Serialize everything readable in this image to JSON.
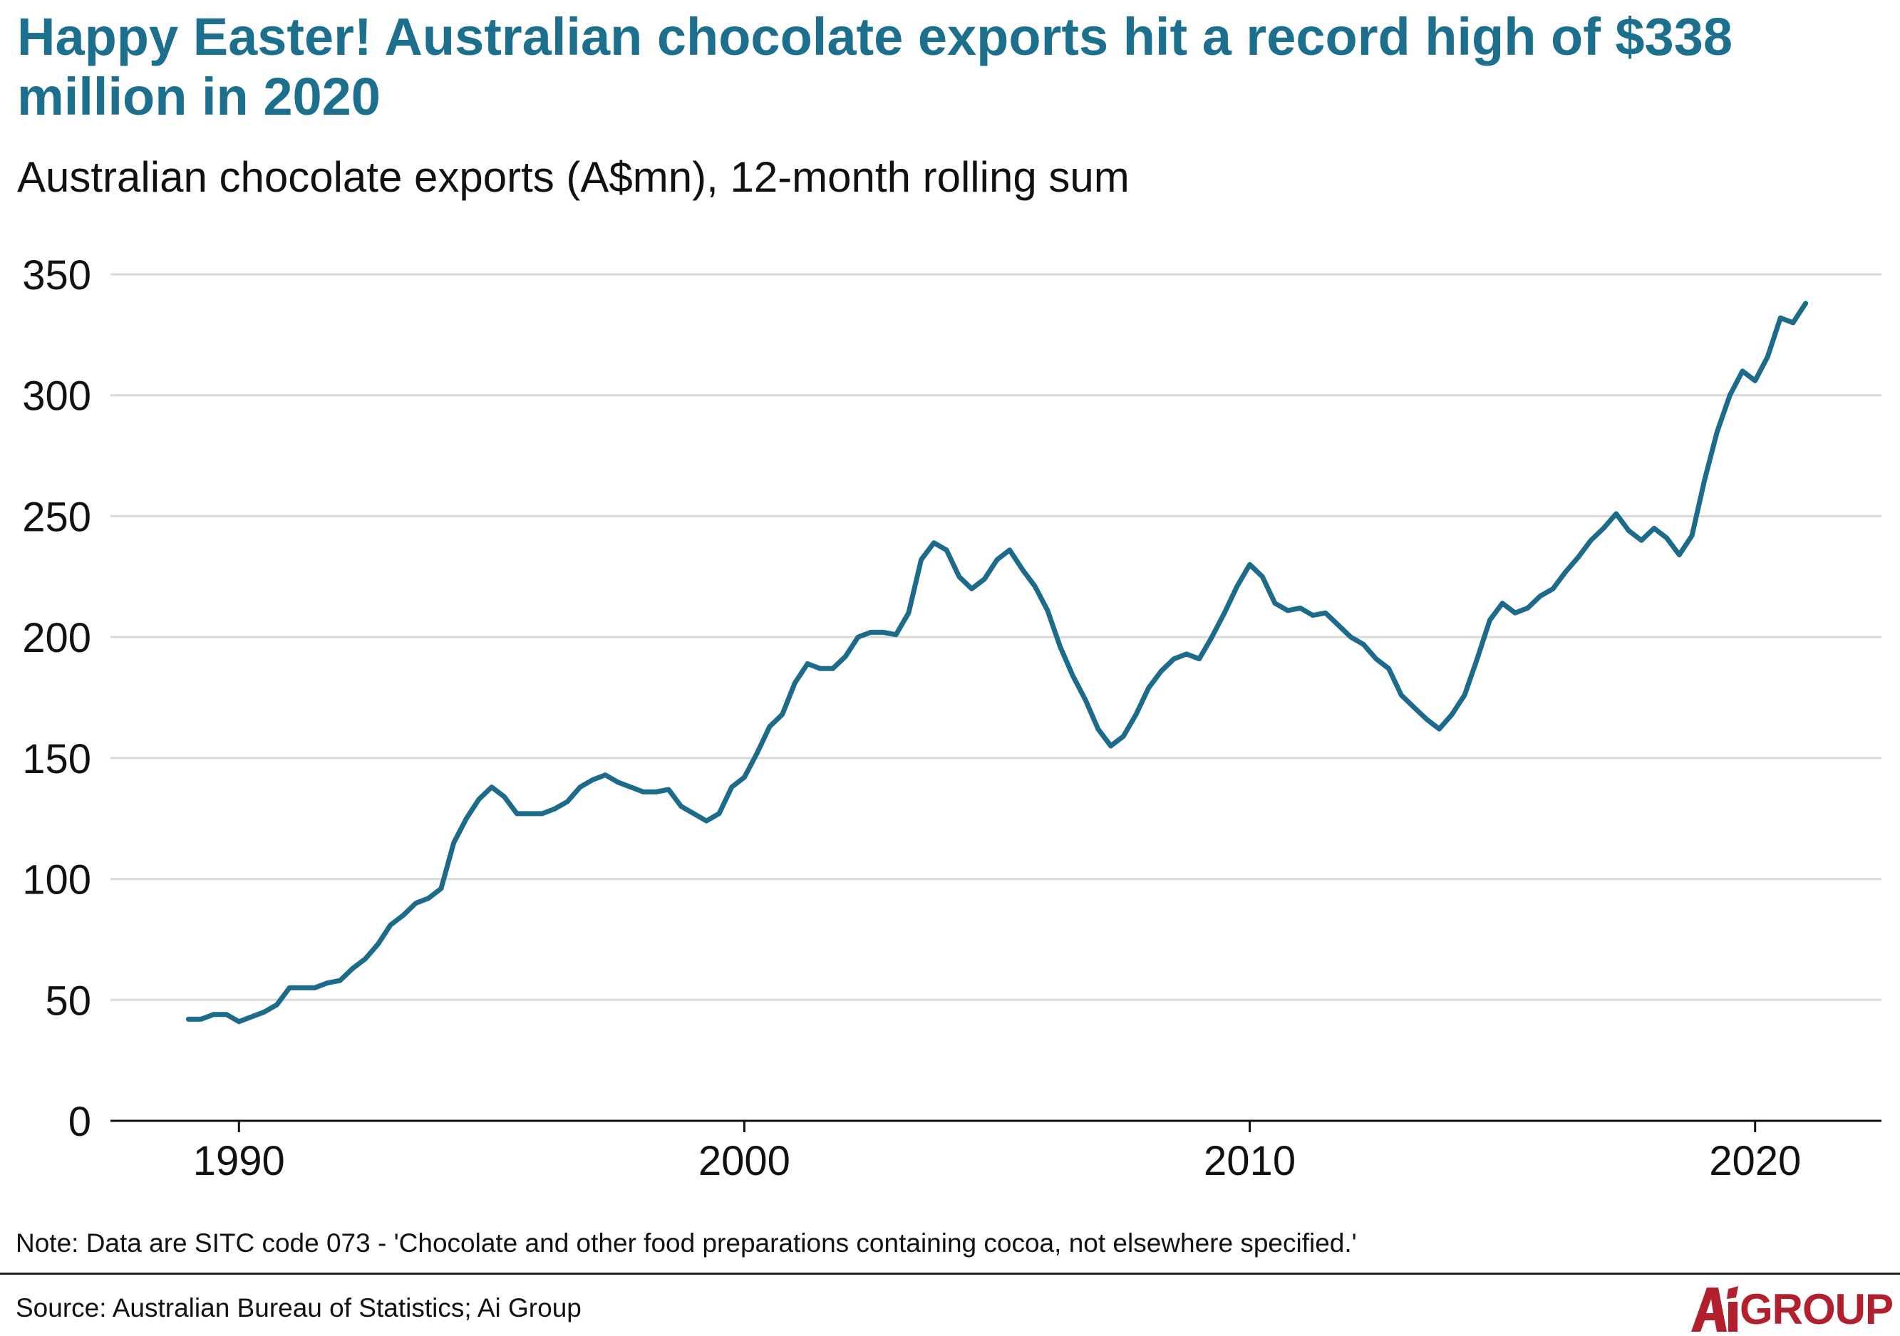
{
  "header": {
    "title": "Happy Easter! Australian chocolate exports hit a record high of $338 million in 2020",
    "subtitle": "Australian chocolate exports (A$mn), 12-month rolling sum"
  },
  "footer": {
    "note": "Note: Data are SITC code 073 - 'Chocolate and other food preparations containing cocoa, not elsewhere specified.'",
    "source": "Source: Australian Bureau of Statistics; Ai Group",
    "logo_text": "AiGROUP",
    "logo_text_visible": "GROUP"
  },
  "colors": {
    "line": "#1d6b8a",
    "title": "#1d6f8e",
    "grid": "#d9d9d9",
    "axis": "#111111",
    "logo": "#b21f2d"
  },
  "chart_data": {
    "type": "line",
    "title": "Australian chocolate exports (A$mn), 12-month rolling sum",
    "xlabel": "",
    "ylabel": "",
    "xlim": [
      1987.5,
      2022.5
    ],
    "ylim": [
      0,
      350
    ],
    "xticks": [
      1990,
      2000,
      2010,
      2020
    ],
    "yticks": [
      0,
      50,
      100,
      150,
      200,
      250,
      300,
      350
    ],
    "grid": "horizontal",
    "legend": "none",
    "series": [
      {
        "x": [
          1989.0,
          1989.25,
          1989.5,
          1989.75,
          1990.0,
          1990.25,
          1990.5,
          1990.75,
          1991.0,
          1991.25,
          1991.5,
          1991.75,
          1992.0,
          1992.25,
          1992.5,
          1992.75,
          1993.0,
          1993.25,
          1993.5,
          1993.75,
          1994.0,
          1994.25,
          1994.5,
          1994.75,
          1995.0,
          1995.25,
          1995.5,
          1995.75,
          1996.0,
          1996.25,
          1996.5,
          1996.75,
          1997.0,
          1997.25,
          1997.5,
          1997.75,
          1998.0,
          1998.25,
          1998.5,
          1998.75,
          1999.0,
          1999.25,
          1999.5,
          1999.75,
          2000.0,
          2000.25,
          2000.5,
          2000.75,
          2001.0,
          2001.25,
          2001.5,
          2001.75,
          2002.0,
          2002.25,
          2002.5,
          2002.75,
          2003.0,
          2003.25,
          2003.5,
          2003.75,
          2004.0,
          2004.25,
          2004.5,
          2004.75,
          2005.0,
          2005.25,
          2005.5,
          2005.75,
          2006.0,
          2006.25,
          2006.5,
          2006.75,
          2007.0,
          2007.25,
          2007.5,
          2007.75,
          2008.0,
          2008.25,
          2008.5,
          2008.75,
          2009.0,
          2009.25,
          2009.5,
          2009.75,
          2010.0,
          2010.25,
          2010.5,
          2010.75,
          2011.0,
          2011.25,
          2011.5,
          2011.75,
          2012.0,
          2012.25,
          2012.5,
          2012.75,
          2013.0,
          2013.25,
          2013.5,
          2013.75,
          2014.0,
          2014.25,
          2014.5,
          2014.75,
          2015.0,
          2015.25,
          2015.5,
          2015.75,
          2016.0,
          2016.25,
          2016.5,
          2016.75,
          2017.0,
          2017.25,
          2017.5,
          2017.75,
          2018.0,
          2018.25,
          2018.5,
          2018.75,
          2019.0,
          2019.25,
          2019.5,
          2019.75,
          2020.0,
          2020.25,
          2020.5,
          2020.75,
          2021.0
        ],
        "y": [
          42,
          42,
          44,
          44,
          41,
          43,
          45,
          48,
          55,
          55,
          55,
          57,
          58,
          63,
          67,
          73,
          81,
          85,
          90,
          92,
          96,
          115,
          125,
          133,
          138,
          134,
          127,
          127,
          127,
          129,
          132,
          138,
          141,
          143,
          140,
          138,
          136,
          136,
          137,
          130,
          127,
          124,
          127,
          138,
          142,
          152,
          163,
          168,
          181,
          189,
          187,
          187,
          192,
          200,
          202,
          202,
          201,
          210,
          232,
          239,
          236,
          225,
          220,
          224,
          232,
          236,
          228,
          221,
          211,
          196,
          184,
          174,
          162,
          155,
          159,
          168,
          179,
          186,
          191,
          193,
          191,
          200,
          210,
          221,
          230,
          225,
          214,
          211,
          212,
          209,
          210,
          205,
          200,
          197,
          191,
          187,
          176,
          171,
          166,
          162,
          168,
          176,
          191,
          207,
          214,
          210,
          212,
          217,
          220,
          227,
          233,
          240,
          245,
          251,
          244,
          240,
          245,
          241,
          234,
          242,
          265,
          285,
          300,
          310,
          306,
          316,
          332,
          330,
          338
        ]
      }
    ]
  }
}
